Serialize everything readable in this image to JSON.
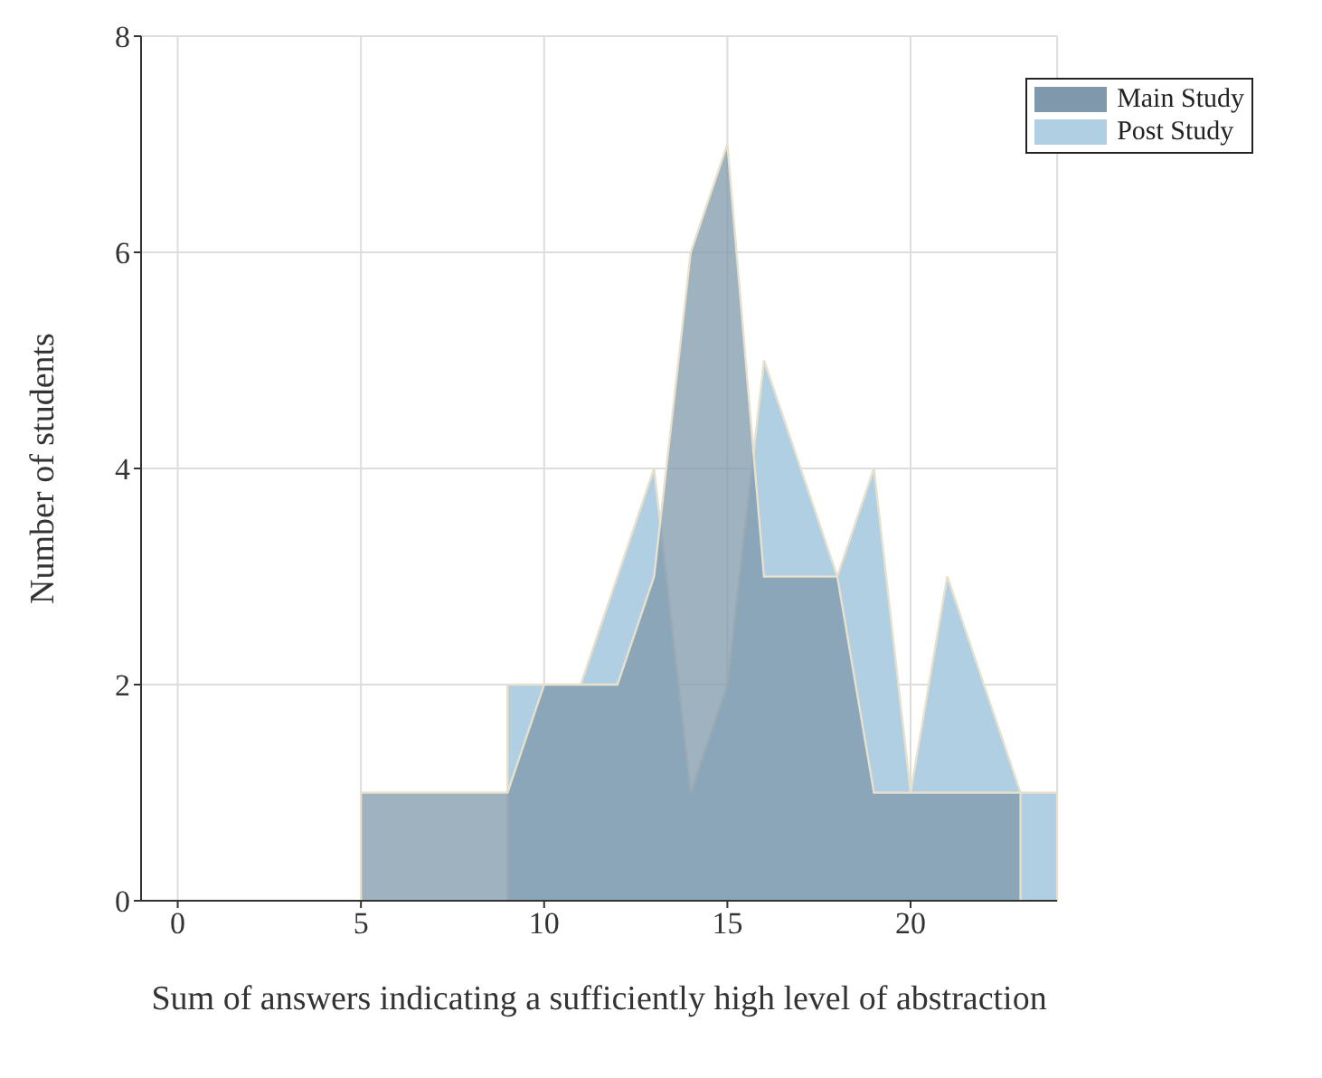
{
  "chart_data": {
    "type": "area",
    "xlabel": "Sum of answers indicating a sufficiently high level of abstraction",
    "ylabel": "Number of students",
    "xlim": [
      -1,
      24
    ],
    "xticks": [
      0,
      5,
      10,
      15,
      20
    ],
    "ylim": [
      0,
      8
    ],
    "yticks": [
      0,
      2,
      4,
      6,
      8
    ],
    "grid": true,
    "legend": "top right",
    "series": [
      {
        "name": "Main Study",
        "color": "#7f98ab",
        "x": [
          -1,
          5,
          5,
          9,
          10,
          12,
          13,
          14,
          15,
          16,
          18,
          19,
          23,
          23
        ],
        "values": [
          0,
          0,
          1,
          1,
          2,
          2,
          3,
          6,
          7,
          3,
          3,
          1,
          1,
          0
        ]
      },
      {
        "name": "Post Study",
        "color": "#b0cfe2",
        "x": [
          9,
          9,
          11,
          13,
          14,
          15,
          16,
          18,
          19,
          20,
          21,
          23,
          24,
          24
        ],
        "values": [
          0,
          2,
          2,
          4,
          1,
          2,
          5,
          3,
          4,
          1,
          3,
          1,
          1,
          0
        ]
      }
    ]
  }
}
